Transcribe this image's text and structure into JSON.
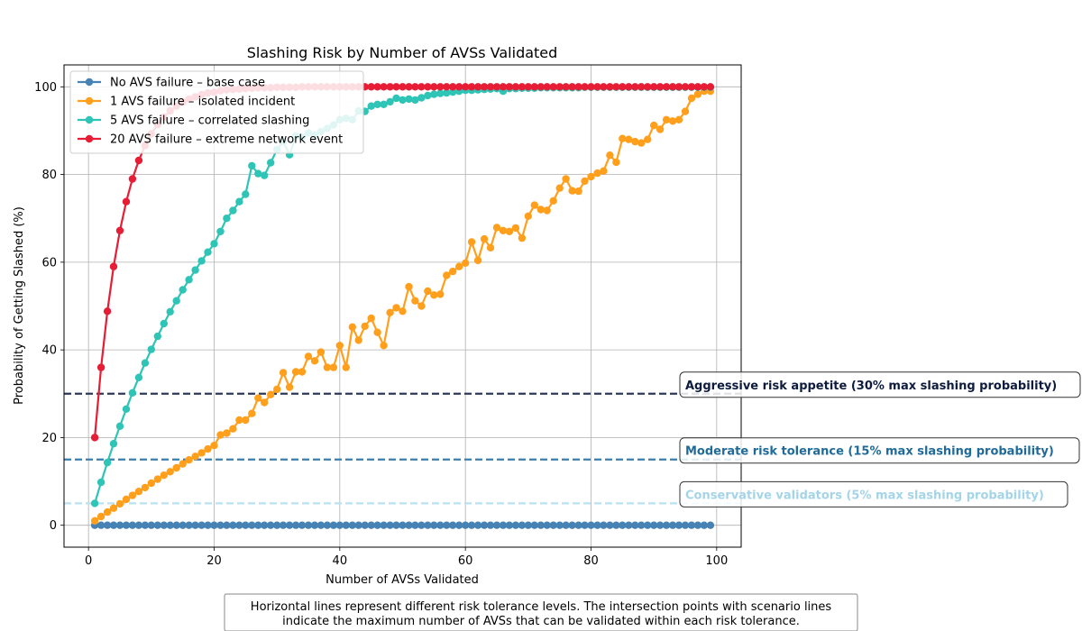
{
  "chart_data": {
    "type": "line",
    "title": "Slashing Risk by Number of AVSs Validated",
    "xlabel": "Number of AVSs Validated",
    "ylabel": "Probability of Getting Slashed (%)",
    "xlim": [
      -3.9,
      103.9
    ],
    "ylim": [
      -5,
      105
    ],
    "xticks": [
      0,
      20,
      40,
      60,
      80,
      100
    ],
    "yticks": [
      0,
      20,
      40,
      60,
      80,
      100
    ],
    "grid": true,
    "legend_position": "top-left",
    "series": [
      {
        "name": "No AVS failure – base case",
        "color": "#4682b4",
        "x": [
          1,
          2,
          3,
          4,
          5,
          6,
          7,
          8,
          9,
          10,
          11,
          12,
          13,
          14,
          15,
          16,
          17,
          18,
          19,
          20,
          21,
          22,
          23,
          24,
          25,
          26,
          27,
          28,
          29,
          30,
          31,
          32,
          33,
          34,
          35,
          36,
          37,
          38,
          39,
          40,
          41,
          42,
          43,
          44,
          45,
          46,
          47,
          48,
          49,
          50,
          51,
          52,
          53,
          54,
          55,
          56,
          57,
          58,
          59,
          60,
          61,
          62,
          63,
          64,
          65,
          66,
          67,
          68,
          69,
          70,
          71,
          72,
          73,
          74,
          75,
          76,
          77,
          78,
          79,
          80,
          81,
          82,
          83,
          84,
          85,
          86,
          87,
          88,
          89,
          90,
          91,
          92,
          93,
          94,
          95,
          96,
          97,
          98,
          99
        ],
        "values": [
          0,
          0,
          0,
          0,
          0,
          0,
          0,
          0,
          0,
          0,
          0,
          0,
          0,
          0,
          0,
          0,
          0,
          0,
          0,
          0,
          0,
          0,
          0,
          0,
          0,
          0,
          0,
          0,
          0,
          0,
          0,
          0,
          0,
          0,
          0,
          0,
          0,
          0,
          0,
          0,
          0,
          0,
          0,
          0,
          0,
          0,
          0,
          0,
          0,
          0,
          0,
          0,
          0,
          0,
          0,
          0,
          0,
          0,
          0,
          0,
          0,
          0,
          0,
          0,
          0,
          0,
          0,
          0,
          0,
          0,
          0,
          0,
          0,
          0,
          0,
          0,
          0,
          0,
          0,
          0,
          0,
          0,
          0,
          0,
          0,
          0,
          0,
          0,
          0,
          0,
          0,
          0,
          0,
          0,
          0,
          0,
          0,
          0,
          0
        ]
      },
      {
        "name": "1 AVS failure – isolated incident",
        "color": "#ff9f1c",
        "x": [
          1,
          2,
          3,
          4,
          5,
          6,
          7,
          8,
          9,
          10,
          11,
          12,
          13,
          14,
          15,
          16,
          17,
          18,
          19,
          20,
          21,
          22,
          23,
          24,
          25,
          26,
          27,
          28,
          29,
          30,
          31,
          32,
          33,
          34,
          35,
          36,
          37,
          38,
          39,
          40,
          41,
          42,
          43,
          44,
          45,
          46,
          47,
          48,
          49,
          50,
          51,
          52,
          53,
          54,
          55,
          56,
          57,
          58,
          59,
          60,
          61,
          62,
          63,
          64,
          65,
          66,
          67,
          68,
          69,
          70,
          71,
          72,
          73,
          74,
          75,
          76,
          77,
          78,
          79,
          80,
          81,
          82,
          83,
          84,
          85,
          86,
          87,
          88,
          89,
          90,
          91,
          92,
          93,
          94,
          95,
          96,
          97,
          98,
          99
        ],
        "values": [
          1.0,
          2.0,
          3.0,
          3.9,
          4.9,
          5.9,
          6.8,
          7.7,
          8.6,
          9.6,
          10.5,
          11.4,
          12.2,
          13.1,
          14.0,
          14.9,
          15.7,
          16.5,
          17.4,
          18.2,
          20.6,
          21.0,
          22.0,
          24.0,
          24.0,
          25.5,
          29.0,
          28.0,
          29.8,
          31.0,
          34.8,
          31.5,
          35.0,
          35.0,
          38.5,
          37.5,
          39.5,
          36.0,
          36.0,
          41.0,
          36.0,
          45.2,
          42.2,
          45.4,
          47.2,
          44.0,
          41.0,
          48.5,
          49.6,
          48.8,
          54.4,
          51.2,
          50.0,
          53.4,
          52.5,
          52.7,
          57.0,
          57.9,
          59.0,
          59.8,
          64.6,
          60.4,
          65.3,
          63.3,
          67.9,
          67.2,
          67.0,
          67.8,
          65.5,
          70.5,
          73.0,
          72.0,
          71.8,
          74.0,
          76.9,
          79.0,
          76.3,
          76.2,
          78.5,
          79.5,
          80.3,
          80.8,
          84.4,
          82.8,
          88.2,
          88.0,
          87.5,
          87.2,
          88.0,
          91.2,
          90.3,
          92.5,
          92.2,
          92.5,
          94.4,
          97.4,
          98.3,
          99.0,
          99.0
        ]
      },
      {
        "name": "5 AVS failure – correlated slashing",
        "color": "#2ec4b6",
        "x": [
          1,
          2,
          3,
          4,
          5,
          6,
          7,
          8,
          9,
          10,
          11,
          12,
          13,
          14,
          15,
          16,
          17,
          18,
          19,
          20,
          21,
          22,
          23,
          24,
          25,
          26,
          27,
          28,
          29,
          30,
          31,
          32,
          33,
          34,
          35,
          36,
          37,
          38,
          39,
          40,
          41,
          42,
          43,
          44,
          45,
          46,
          47,
          48,
          49,
          50,
          51,
          52,
          53,
          54,
          55,
          56,
          57,
          58,
          59,
          60,
          61,
          62,
          63,
          64,
          65,
          66,
          67,
          68,
          69,
          70,
          71,
          72,
          73,
          74,
          75,
          76,
          77,
          78,
          79,
          80,
          81,
          82,
          83,
          84,
          85,
          86,
          87,
          88,
          89,
          90,
          91,
          92,
          93,
          94,
          95,
          96,
          97,
          98,
          99
        ],
        "values": [
          5.0,
          9.8,
          14.3,
          18.6,
          22.6,
          26.5,
          30.2,
          33.7,
          37.0,
          40.1,
          43.1,
          46.0,
          48.7,
          51.2,
          53.7,
          56.0,
          58.2,
          60.3,
          62.3,
          64.2,
          67.0,
          70.0,
          71.8,
          73.8,
          75.5,
          82.0,
          80.2,
          79.8,
          82.7,
          85.7,
          87.5,
          84.5,
          88.8,
          88.5,
          89.5,
          89.0,
          89.8,
          90.5,
          91.3,
          92.5,
          92.8,
          92.5,
          94.5,
          94.4,
          95.6,
          96.0,
          96.0,
          96.6,
          97.4,
          97.0,
          97.2,
          97.0,
          97.5,
          98.0,
          98.3,
          98.5,
          98.6,
          98.8,
          99.0,
          99.2,
          99.2,
          99.3,
          99.4,
          99.5,
          99.6,
          99.0,
          99.6,
          99.6,
          99.7,
          99.7,
          99.7,
          99.8,
          99.8,
          99.8,
          99.8,
          99.8,
          99.8,
          99.8,
          99.9,
          99.9,
          99.9,
          99.9,
          99.9,
          99.9,
          99.9,
          99.9,
          99.9,
          99.9,
          99.9,
          99.9,
          99.9,
          99.9,
          99.9,
          99.9,
          99.9,
          99.9,
          99.9,
          99.9,
          99.9
        ]
      },
      {
        "name": "20 AVS failure – extreme network event",
        "color": "#e71d36",
        "x": [
          1,
          2,
          3,
          4,
          5,
          6,
          7,
          8,
          9,
          10,
          11,
          12,
          13,
          14,
          15,
          16,
          17,
          18,
          19,
          20,
          21,
          22,
          23,
          24,
          25,
          26,
          27,
          28,
          29,
          30,
          31,
          32,
          33,
          34,
          35,
          36,
          37,
          38,
          39,
          40,
          41,
          42,
          43,
          44,
          45,
          46,
          47,
          48,
          49,
          50,
          51,
          52,
          53,
          54,
          55,
          56,
          57,
          58,
          59,
          60,
          61,
          62,
          63,
          64,
          65,
          66,
          67,
          68,
          69,
          70,
          71,
          72,
          73,
          74,
          75,
          76,
          77,
          78,
          79,
          80,
          81,
          82,
          83,
          84,
          85,
          86,
          87,
          88,
          89,
          90,
          91,
          92,
          93,
          94,
          95,
          96,
          97,
          98,
          99
        ],
        "values": [
          20.0,
          36.0,
          48.8,
          59.0,
          67.2,
          73.8,
          79.0,
          83.2,
          86.6,
          89.3,
          91.4,
          93.1,
          94.5,
          95.6,
          96.5,
          97.2,
          97.7,
          98.2,
          98.6,
          98.8,
          99.1,
          99.3,
          99.4,
          99.5,
          99.6,
          99.7,
          99.8,
          99.8,
          99.8,
          99.9,
          99.9,
          99.9,
          99.9,
          100,
          100,
          100,
          100,
          100,
          100,
          100,
          100,
          100,
          100,
          100,
          100,
          100,
          100,
          100,
          100,
          100,
          100,
          100,
          100,
          100,
          100,
          100,
          100,
          100,
          100,
          100,
          100,
          100,
          100,
          100,
          100,
          100,
          100,
          100,
          100,
          100,
          100,
          100,
          100,
          100,
          100,
          100,
          100,
          100,
          100,
          100,
          100,
          100,
          100,
          100,
          100,
          100,
          100,
          100,
          100,
          100,
          100,
          100,
          100,
          100,
          100,
          100,
          100,
          100,
          100
        ]
      }
    ],
    "reference_lines": [
      {
        "y": 30,
        "label": "Aggressive risk appetite (30% max slashing probability)",
        "color": "#2e3a59",
        "text_color": "#0d1b3e"
      },
      {
        "y": 15,
        "label": "Moderate risk tolerance (15% max slashing probability)",
        "color": "#3a7fae",
        "text_color": "#1f6a99"
      },
      {
        "y": 5,
        "label": "Conservative validators (5% max slashing probability)",
        "color": "#b9e1ef",
        "text_color": "#a4d4e8"
      }
    ],
    "caption": [
      "Horizontal lines represent different risk tolerance levels. The intersection points with scenario lines",
      "indicate the maximum number of AVSs that can be validated within each risk tolerance."
    ]
  }
}
